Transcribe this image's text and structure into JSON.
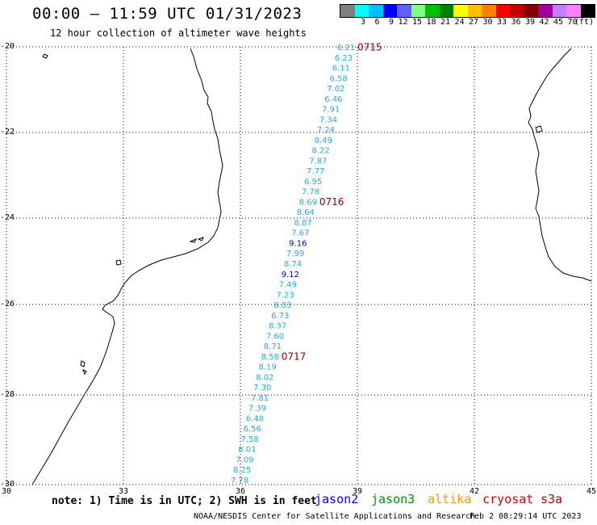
{
  "header": {
    "title": "00:00 – 11:59 UTC 01/31/2023",
    "subtitle": "12 hour collection of altimeter wave heights"
  },
  "scale": {
    "colors": [
      "#7f7f7f",
      "#00ffff",
      "#00bfff",
      "#0000ff",
      "#6060ff",
      "#80ff80",
      "#00c000",
      "#008000",
      "#ffff00",
      "#ffc000",
      "#ff8000",
      "#ff0000",
      "#c00000",
      "#800000",
      "#a000a0",
      "#c080ff",
      "#ff80ff",
      "#000000"
    ],
    "labels": [
      "3",
      "6",
      "9",
      "12",
      "15",
      "18",
      "21",
      "24",
      "27",
      "30",
      "33",
      "36",
      "39",
      "42",
      "45",
      "70"
    ],
    "units": "(ft)"
  },
  "axes": {
    "lat_labels": [
      "-20",
      "-22",
      "-24",
      "-26",
      "-28",
      "-30"
    ],
    "lon_labels": [
      "30",
      "33",
      "36",
      "39",
      "42",
      "45"
    ]
  },
  "track": {
    "color_light": "#29a9e0",
    "color_dark": "#0000c8",
    "values": [
      "6.21",
      "6.23",
      "6.11",
      "6.58",
      "7.02",
      "6.46",
      "7.91",
      "7.34",
      "7.24",
      "8.49",
      "8.22",
      "7.87",
      "7.77",
      "6.95",
      "7.78",
      "8.69",
      "8.64",
      "8.87",
      "7.67",
      "9.16",
      "7.99",
      "8.74",
      "9.12",
      "7.49",
      "7.23",
      "8.03",
      "6.73",
      "8.37",
      "7.60",
      "8.71",
      "8.58",
      "8.19",
      "8.02",
      "7.30",
      "7.81",
      "7.39",
      "6.48",
      "6.56",
      "7.58",
      "8.01",
      "7.09",
      "8.25",
      "7.78"
    ],
    "dark_indices": [
      19,
      22
    ],
    "times": [
      {
        "label": "0715",
        "index": 0
      },
      {
        "label": "0716",
        "index": 15
      },
      {
        "label": "0717",
        "index": 30
      }
    ],
    "time_color": "#8b0000"
  },
  "footer": {
    "note": "note: 1) Time is in UTC; 2) SWH is in feet",
    "satellites": [
      {
        "name": "jason2",
        "color": "#0000ff"
      },
      {
        "name": "jason3",
        "color": "#009000"
      },
      {
        "name": "altika",
        "color": "#ff9900"
      },
      {
        "name": "cryosat",
        "color": "#e00000"
      },
      {
        "name": "s3a",
        "color": "#c00000"
      }
    ],
    "credit": "NOAA/NESDIS Center for Satellite Applications and Research",
    "timestamp": "Feb  2 08:29:14 UTC 2023"
  }
}
